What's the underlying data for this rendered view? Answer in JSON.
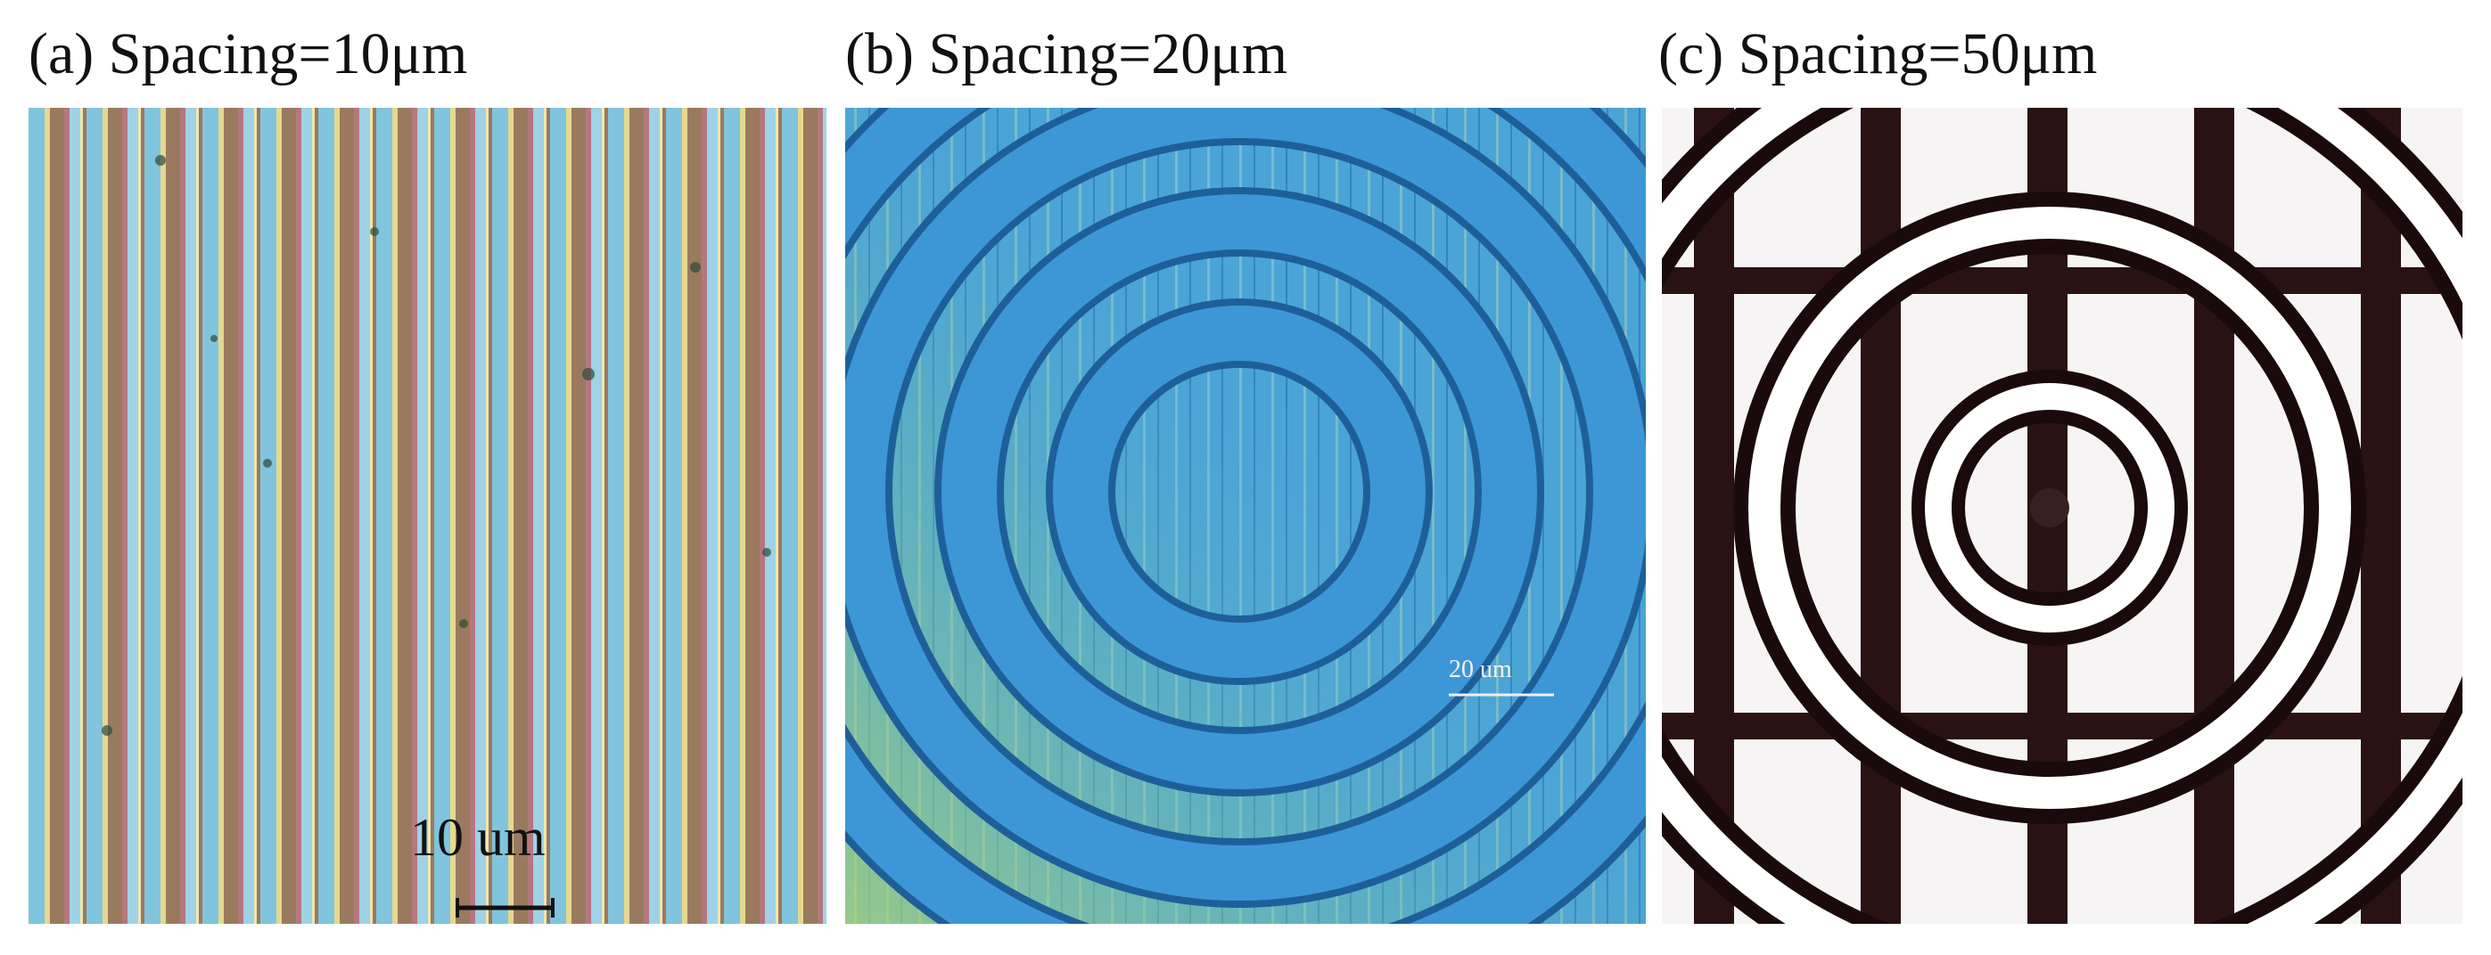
{
  "panels": [
    {
      "label": "(a) Spacing=10μm",
      "scale_bar": "10 um"
    },
    {
      "label": "(b) Spacing=20μm",
      "scale_bar": "20 um"
    },
    {
      "label": "(c) Spacing=50μm"
    }
  ]
}
